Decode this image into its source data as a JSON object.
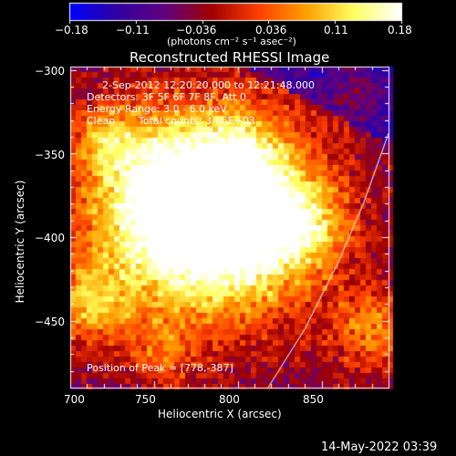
{
  "colorbar": {
    "ticks": [
      "−0.18",
      "−0.11",
      "−0.036",
      "0.036",
      "0.11",
      "0.18"
    ],
    "units": "(photons cm⁻² s⁻¹ asec⁻²)"
  },
  "chart_data": {
    "type": "heatmap",
    "title": "Reconstructed RHESSI Image",
    "xlabel": "Heliocentric X (arcsec)",
    "ylabel": "Heliocentric Y (arcsec)",
    "xlim": [
      700,
      890
    ],
    "ylim": [
      -490,
      -298
    ],
    "xticks": [
      700,
      750,
      800,
      850
    ],
    "xtick_labels": [
      "700",
      "750",
      "800",
      "850"
    ],
    "yticks": [
      -300,
      -350,
      -400,
      -450
    ],
    "ytick_labels": [
      "−300",
      "−350",
      "−400",
      "−450"
    ],
    "color_range": [
      -0.18,
      0.18
    ],
    "colormap": [
      "#0000ff",
      "#3000a0",
      "#600080",
      "#a00000",
      "#ff4000",
      "#ffa000",
      "#ffff60",
      "#ffffff"
    ],
    "annotations": {
      "time": "2-Sep-2012 12:20:20.000 to 12:21:48.000",
      "detectors": "Detectors: 3F 5F 6F 7F 8F, Att 0",
      "energy": "Energy Range: 3.0 - 6.0 keV",
      "clean": "Clean",
      "counts": "Total counts: 3.66E+03",
      "peak": "Position of Peak = [778,-387]"
    },
    "peak": [
      778,
      -387
    ],
    "limb_curve": [
      [
        815,
        -495
      ],
      [
        840,
        -455
      ],
      [
        860,
        -415
      ],
      [
        875,
        -380
      ],
      [
        890,
        -338
      ]
    ]
  },
  "footer": {
    "date": "14-May-2022 03:39"
  }
}
